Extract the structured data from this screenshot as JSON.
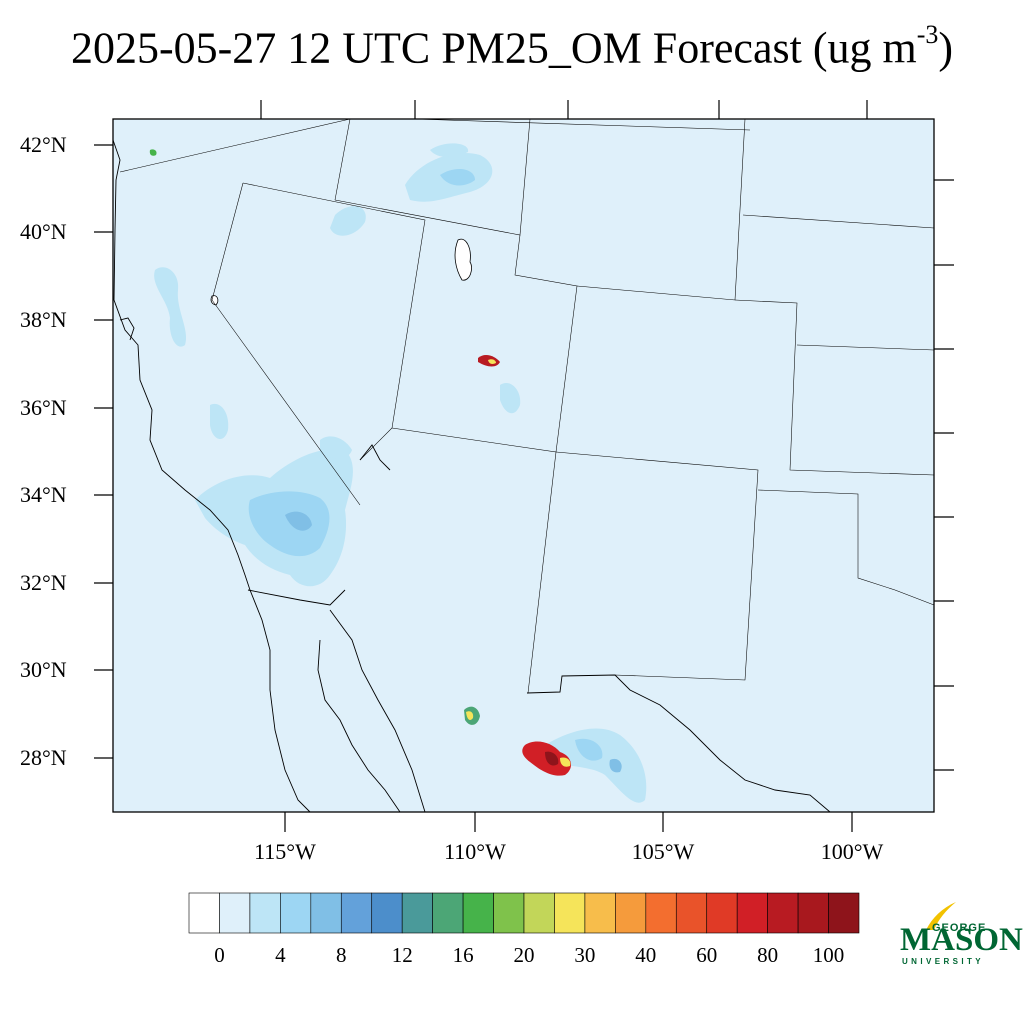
{
  "title": {
    "prefix": "2025-05-27 12 UTC PM25_OM Forecast (ug m",
    "superscript": "-3",
    "suffix": ")"
  },
  "map": {
    "lat_labels": [
      "42°N",
      "40°N",
      "38°N",
      "36°N",
      "34°N",
      "32°N",
      "30°N",
      "28°N"
    ],
    "lon_labels": [
      "115°W",
      "110°W",
      "105°W",
      "100°W"
    ],
    "background_color": "#dff0fa",
    "boundary_color": "#000000"
  },
  "legend": {
    "colors": [
      "#ffffff",
      "#dff0fa",
      "#bde5f6",
      "#9dd6f3",
      "#80bfe6",
      "#63a1da",
      "#4c8ecb",
      "#4a9a9a",
      "#4ca676",
      "#46b34a",
      "#7fc24b",
      "#c2d659",
      "#f5e45a",
      "#f7bd4b",
      "#f59b3c",
      "#f36e2f",
      "#e9532a",
      "#e03a26",
      "#d11f26",
      "#b81b22",
      "#a8181e",
      "#8e141b"
    ],
    "tick_labels": [
      "0",
      "4",
      "8",
      "12",
      "16",
      "20",
      "30",
      "40",
      "60",
      "80",
      "100"
    ]
  },
  "logo": {
    "line1": "GEORGE",
    "line2": "MASON",
    "line3": "UNIVERSITY",
    "color": "#006633",
    "accent": "#f2c200"
  }
}
